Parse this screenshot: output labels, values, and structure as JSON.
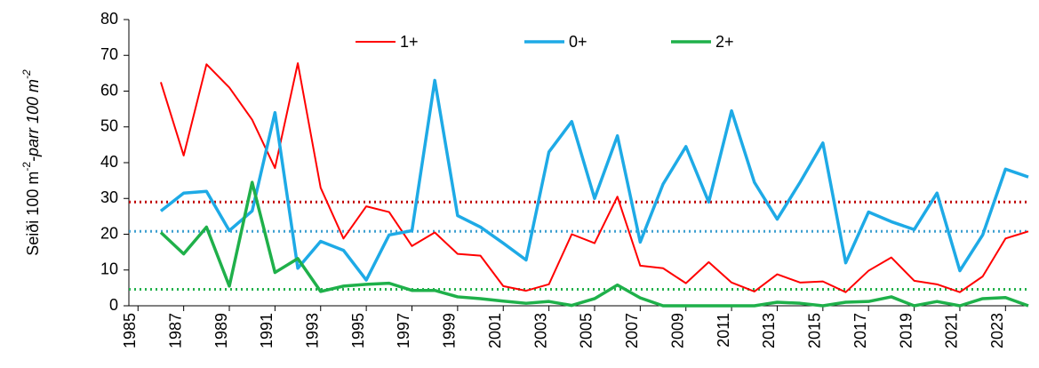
{
  "chart_data": {
    "type": "line",
    "ylabel": {
      "main": "Seiði 100 m",
      "sup": "-2",
      "italic": "-parr 100 m",
      "sup2": "-2"
    },
    "x": [
      1986,
      1987,
      1988,
      1989,
      1990,
      1991,
      1992,
      1993,
      1994,
      1995,
      1996,
      1997,
      1998,
      1999,
      2000,
      2001,
      2002,
      2003,
      2004,
      2005,
      2006,
      2007,
      2008,
      2009,
      2010,
      2011,
      2012,
      2013,
      2014,
      2015,
      2016,
      2017,
      2018,
      2019,
      2020,
      2021,
      2022,
      2023,
      2024
    ],
    "series": [
      {
        "name": "1+",
        "color": "#ff0000",
        "width": 2,
        "values": [
          62.5,
          42,
          67.5,
          61,
          52,
          38.5,
          67.8,
          33,
          18.8,
          27.8,
          26.2,
          16.7,
          20.5,
          14.5,
          14,
          5.5,
          4.2,
          6,
          20,
          17.5,
          30.5,
          11.2,
          10.5,
          6.3,
          12.2,
          6.5,
          4,
          8.8,
          6.5,
          6.8,
          3.8,
          9.8,
          13.5,
          7,
          6,
          3.8,
          8.2,
          18.8,
          20.8
        ]
      },
      {
        "name": "0+",
        "color": "#1eaae6",
        "width": 3.5,
        "values": [
          26.5,
          31.5,
          32,
          21,
          26.5,
          54,
          10.5,
          18,
          15.5,
          7.2,
          19.8,
          21,
          63,
          25.2,
          22,
          17.5,
          12.8,
          43,
          51.5,
          30,
          47.5,
          17.8,
          34,
          44.5,
          29,
          54.5,
          34.5,
          24.2,
          34.5,
          45.5,
          12,
          26.2,
          23.5,
          21.3,
          31.5,
          9.8,
          19.8,
          38.2,
          36
        ]
      },
      {
        "name": "2+",
        "color": "#1fb04a",
        "width": 3.5,
        "values": [
          20.5,
          14.5,
          22,
          5.5,
          34.5,
          9.3,
          13.2,
          4,
          5.5,
          6,
          6.3,
          4.3,
          4.3,
          2.5,
          2,
          1.3,
          0.7,
          1.2,
          0.1,
          2,
          5.8,
          2.2,
          0,
          0,
          0,
          0,
          0,
          1,
          0.7,
          0,
          1,
          1.2,
          2.5,
          0,
          1.2,
          0,
          2,
          2.3,
          0
        ]
      }
    ],
    "reference_lines": [
      {
        "value": 29,
        "color": "#c00000"
      },
      {
        "value": 20.8,
        "color": "#3d9fd0"
      },
      {
        "value": 4.6,
        "color": "#22b14c"
      }
    ],
    "xlim": [
      1984.6,
      2024
    ],
    "xticks": [
      1985,
      1987,
      1989,
      1991,
      1993,
      1995,
      1997,
      1999,
      2001,
      2003,
      2005,
      2007,
      2009,
      2011,
      2013,
      2015,
      2017,
      2019,
      2021,
      2023
    ],
    "ylim": [
      0,
      80
    ],
    "yticks": [
      0,
      10,
      20,
      30,
      40,
      50,
      60,
      70,
      80
    ],
    "legend": "top"
  }
}
